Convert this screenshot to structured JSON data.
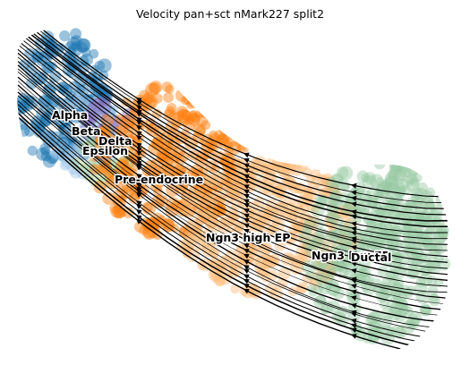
{
  "chart_data": {
    "type": "scatter",
    "title": "Velocity pan+sct nMark227 split2",
    "xlabel": "",
    "ylabel": "",
    "axes_visible": false,
    "grid": false,
    "legend": "none",
    "overlay": "velocity streamlines with arrowheads",
    "clusters": [
      {
        "name": "Alpha",
        "color": "#1f77b4"
      },
      {
        "name": "Beta",
        "color": "#9ec5e8"
      },
      {
        "name": "Delta",
        "color": "#8c6fbf"
      },
      {
        "name": "Epsilon",
        "color": "#b5d89a"
      },
      {
        "name": "Pre-endocrine",
        "color": "#ff7f0e"
      },
      {
        "name": "Ngn3 high EP",
        "color": "#ffbb78"
      },
      {
        "name": "Ngn3 low EP",
        "color": "#98c9a3"
      },
      {
        "name": "Ductal",
        "color": "#98c9a3"
      }
    ]
  }
}
